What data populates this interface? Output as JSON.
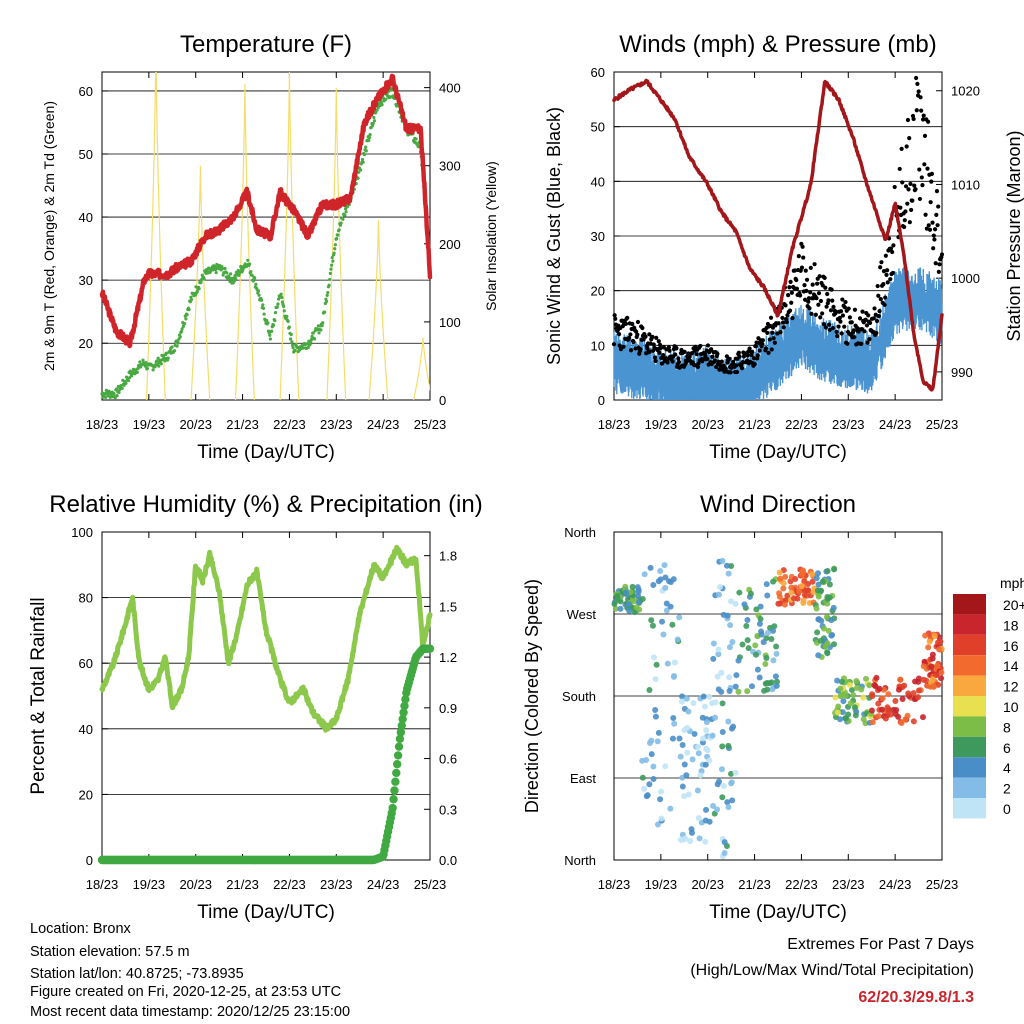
{
  "x_ticks": [
    "18/23",
    "19/23",
    "20/23",
    "21/23",
    "22/23",
    "23/23",
    "24/23",
    "25/23"
  ],
  "panels": {
    "temperature": {
      "title": "Temperature (F)",
      "xlabel": "Time (Day/UTC)",
      "ylabel_left": "2m & 9m T (Red, Orange) & 2m Td (Green)",
      "ylabel_right": "Solar Insolation (Yellow)",
      "yticks_left": [
        "20",
        "30",
        "40",
        "50",
        "60"
      ],
      "yticks_right": [
        "0",
        "100",
        "200",
        "300",
        "400"
      ]
    },
    "winds": {
      "title": "Winds (mph) & Pressure (mb)",
      "xlabel": "Time (Day/UTC)",
      "ylabel_left": "Sonic Wind & Gust (Blue, Black)",
      "ylabel_right": "Station Pressure (Maroon)",
      "yticks_left": [
        "0",
        "10",
        "20",
        "30",
        "40",
        "50",
        "60"
      ],
      "yticks_right": [
        "990",
        "1000",
        "1010",
        "1020"
      ]
    },
    "humidity": {
      "title": "Relative Humidity (%) & Precipitation (in)",
      "xlabel": "Time (Day/UTC)",
      "ylabel_left": "Percent & Total Rainfall",
      "yticks_left": [
        "0",
        "20",
        "40",
        "60",
        "80",
        "100"
      ],
      "yticks_right": [
        "0.0",
        "0.3",
        "0.6",
        "0.9",
        "1.2",
        "1.5",
        "1.8"
      ]
    },
    "direction": {
      "title": "Wind Direction",
      "xlabel": "Time (Day/UTC)",
      "ylabel_left": "Direction (Colored By Speed)",
      "yticks_left": [
        "North",
        "East",
        "South",
        "West",
        "North"
      ],
      "colorbar_title": "mph",
      "colorbar_labels": [
        "20+",
        "18",
        "16",
        "14",
        "12",
        "10",
        "8",
        "6",
        "4",
        "2",
        "0"
      ],
      "colorbar_colors": [
        "#a3171b",
        "#c8252c",
        "#e0402a",
        "#f26a2e",
        "#f8a83c",
        "#e8e04e",
        "#7cbd47",
        "#3d9a5c",
        "#4a8ec8",
        "#83bce6",
        "#bfe4f6"
      ]
    }
  },
  "chart_data": [
    {
      "type": "line",
      "title": "Temperature (F)",
      "xlabel": "Time (Day/UTC)",
      "x_days": [
        0,
        0.3,
        0.6,
        0.9,
        1.0,
        1.4,
        1.6,
        1.9,
        2.2,
        2.5,
        2.8,
        3.1,
        3.3,
        3.6,
        3.8,
        4.1,
        4.4,
        4.7,
        5.0,
        5.3,
        5.6,
        5.9,
        6.2,
        6.5,
        6.8,
        7.0
      ],
      "series": [
        {
          "axis": "left",
          "ylim": [
            11,
            63
          ],
          "values": [
            28,
            22,
            20,
            30,
            31,
            31,
            32,
            33,
            37,
            38,
            40,
            44,
            38,
            37,
            44,
            41,
            37,
            42,
            42,
            43,
            55,
            59,
            62,
            54,
            54,
            31
          ]
        },
        {
          "axis": "left",
          "ylim": [
            11,
            63
          ],
          "values": [
            12,
            12,
            15,
            17,
            16,
            18,
            20,
            27,
            31,
            32,
            30,
            33,
            29,
            21,
            28,
            19,
            20,
            23,
            37,
            43,
            50,
            58,
            60,
            54,
            51,
            31
          ]
        },
        {
          "axis": "right",
          "ylim": [
            0,
            420
          ],
          "peaks_at_day": [
            1.15,
            2.1,
            3.05,
            4.0,
            5.0,
            5.9,
            6.85
          ],
          "peak_values": [
            450,
            300,
            405,
            420,
            400,
            230,
            80
          ]
        }
      ]
    },
    {
      "type": "line",
      "title": "Winds (mph) & Pressure (mb)",
      "xlabel": "Time (Day/UTC)",
      "series": [
        {
          "axis": "right",
          "ylim": [
            987,
            1022
          ],
          "x_days": [
            0,
            0.3,
            0.7,
            1.0,
            1.3,
            1.6,
            2.0,
            2.3,
            2.6,
            2.9,
            3.2,
            3.5,
            3.8,
            4.2,
            4.5,
            4.8,
            5.1,
            5.4,
            5.6,
            5.8,
            6.0,
            6.2,
            6.4,
            6.6,
            6.8,
            7.0
          ],
          "values": [
            1019,
            1020,
            1021,
            1019,
            1017,
            1013,
            1010,
            1007,
            1005,
            1001,
            999,
            996,
            1003,
            1010,
            1021,
            1019,
            1015,
            1010,
            1007,
            1004,
            1008,
            1002,
            994,
            989,
            988,
            996
          ]
        },
        {
          "axis": "left",
          "ylim": [
            0,
            60
          ],
          "x_days": [
            0,
            0.5,
            1,
            1.5,
            2,
            2.5,
            3,
            3.5,
            4,
            4.5,
            5,
            5.5,
            6,
            6.5,
            7
          ],
          "values": [
            8,
            7,
            5,
            4,
            5,
            3,
            5,
            9,
            13,
            10,
            9,
            8,
            19,
            20,
            17
          ]
        },
        {
          "axis": "left",
          "ylim": [
            0,
            60
          ],
          "x_days": [
            0,
            0.5,
            1,
            1.5,
            2,
            2.5,
            3,
            3.5,
            4,
            4.5,
            5,
            5.5,
            6,
            6.5,
            7
          ],
          "values": [
            12,
            11,
            8,
            7,
            8,
            6,
            8,
            13,
            22,
            17,
            13,
            12,
            30,
            48,
            25
          ]
        }
      ]
    },
    {
      "type": "line",
      "title": "Relative Humidity (%) & Precipitation (in)",
      "xlabel": "Time (Day/UTC)",
      "series": [
        {
          "axis": "left",
          "ylim": [
            0,
            100
          ],
          "x_days": [
            0,
            0.25,
            0.5,
            0.65,
            0.8,
            1.0,
            1.2,
            1.35,
            1.5,
            1.7,
            1.85,
            2.0,
            2.15,
            2.3,
            2.5,
            2.7,
            2.9,
            3.1,
            3.3,
            3.5,
            3.8,
            4.0,
            4.3,
            4.5,
            4.8,
            5.0,
            5.25,
            5.5,
            5.8,
            6.0,
            6.3,
            6.5,
            6.7,
            6.85,
            7.0
          ],
          "values": [
            52,
            60,
            72,
            80,
            60,
            52,
            55,
            62,
            47,
            52,
            62,
            90,
            85,
            93,
            82,
            60,
            70,
            84,
            88,
            70,
            55,
            48,
            52,
            45,
            40,
            43,
            55,
            75,
            90,
            86,
            95,
            90,
            92,
            65,
            75
          ]
        },
        {
          "axis": "right",
          "ylim": [
            0,
            1.94
          ],
          "x_days": [
            0,
            5.8,
            6.0,
            6.2,
            6.35,
            6.5,
            6.7,
            6.85,
            7.0
          ],
          "values": [
            0,
            0,
            0.02,
            0.3,
            0.7,
            1.0,
            1.2,
            1.25,
            1.25
          ]
        }
      ]
    },
    {
      "type": "scatter",
      "title": "Wind Direction",
      "xlabel": "Time (Day/UTC)",
      "y_categories": [
        "North",
        "East",
        "South",
        "West",
        "North"
      ],
      "clusters": [
        {
          "x": [
            0.0,
            0.6
          ],
          "dir": [
            270,
            300
          ],
          "speed": 6
        },
        {
          "x": [
            0.6,
            1.4
          ],
          "dir": [
            20,
            330
          ],
          "speed": 3
        },
        {
          "x": [
            1.4,
            2.1
          ],
          "dir": [
            20,
            180
          ],
          "speed": 2
        },
        {
          "x": [
            2.1,
            2.6
          ],
          "dir": [
            0,
            330
          ],
          "speed": 3
        },
        {
          "x": [
            2.6,
            3.5
          ],
          "dir": [
            180,
            310
          ],
          "speed": 5
        },
        {
          "x": [
            3.5,
            4.3
          ],
          "dir": [
            280,
            320
          ],
          "speed": 14
        },
        {
          "x": [
            4.3,
            4.7
          ],
          "dir": [
            220,
            320
          ],
          "speed": 6
        },
        {
          "x": [
            4.7,
            5.5
          ],
          "dir": [
            150,
            200
          ],
          "speed": 7
        },
        {
          "x": [
            5.5,
            6.6
          ],
          "dir": [
            150,
            200
          ],
          "speed": 16
        },
        {
          "x": [
            6.6,
            7.0
          ],
          "dir": [
            190,
            250
          ],
          "speed": 15
        }
      ]
    }
  ],
  "station_info": [
    "Location: Bronx",
    "Station elevation: 57.5 m",
    "Station lat/lon: 40.8725; -73.8935",
    "Figure created on Fri, 2020-12-25, at 23:53 UTC",
    "Most recent data timestamp: 2020/12/25 23:15:00"
  ],
  "extremes": {
    "title": "Extremes For Past 7 Days",
    "subtitle": "(High/Low/Max Wind/Total Precipitation)",
    "value": "62/20.3/29.8/1.3",
    "value_color": "#c8252c"
  }
}
